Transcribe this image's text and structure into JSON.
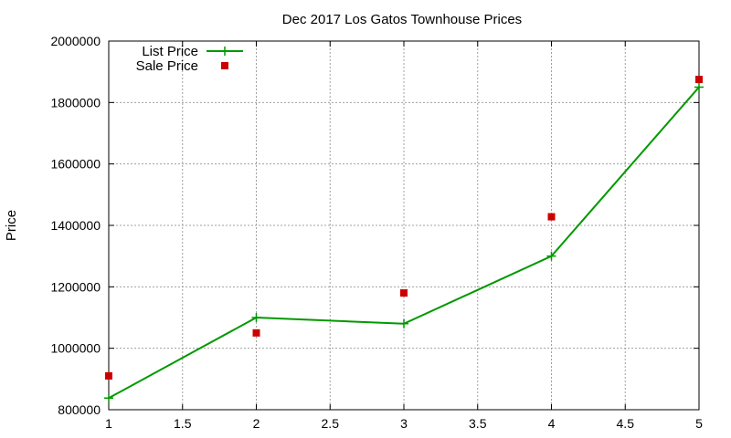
{
  "chart_data": {
    "type": "line",
    "title": "Dec 2017 Los Gatos Townhouse Prices",
    "xlabel": "",
    "ylabel": "Price",
    "xlim": [
      1,
      5
    ],
    "ylim": [
      800000,
      2000000
    ],
    "xticks": [
      "1",
      "1.5",
      "2",
      "2.5",
      "3",
      "3.5",
      "4",
      "4.5",
      "5"
    ],
    "yticks": [
      "800000",
      "1000000",
      "1200000",
      "1400000",
      "1600000",
      "1800000",
      "2000000"
    ],
    "grid": true,
    "legend_position": "top-left",
    "series": [
      {
        "name": "List Price",
        "style": "line-plus",
        "color": "#009900",
        "x": [
          1,
          2,
          3,
          4,
          5
        ],
        "y": [
          838000,
          1100000,
          1080000,
          1300000,
          1850000
        ]
      },
      {
        "name": "Sale Price",
        "style": "square-points",
        "color": "#cc0000",
        "x": [
          1,
          2,
          3,
          4,
          5
        ],
        "y": [
          910000,
          1050000,
          1180000,
          1428000,
          1875000
        ]
      }
    ]
  }
}
